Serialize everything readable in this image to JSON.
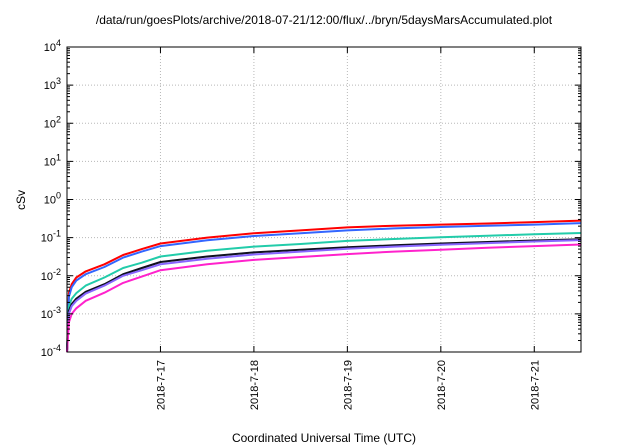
{
  "chart_data": {
    "type": "line",
    "title": "/data/run/goesPlots/archive/2018-07-21/12:00/flux/../bryn/5daysMarsAccumulated.plot",
    "xlabel": "Coordinated Universal Time (UTC)",
    "ylabel": "cSv",
    "y_scale": "log",
    "ylim": [
      0.0001,
      10000
    ],
    "xlim": [
      0,
      5.5
    ],
    "x_units": "days since 2018-7-16 00:00 UTC",
    "grid": true,
    "legend": "none",
    "x_ticks": [
      {
        "x": 1,
        "label": "2018-7-17"
      },
      {
        "x": 2,
        "label": "2018-7-18"
      },
      {
        "x": 3,
        "label": "2018-7-19"
      },
      {
        "x": 4,
        "label": "2018-7-20"
      },
      {
        "x": 5,
        "label": "2018-7-21"
      }
    ],
    "y_ticks": [
      {
        "y": 0.0001,
        "base": "10",
        "exp": "-4"
      },
      {
        "y": 0.001,
        "base": "10",
        "exp": "-3"
      },
      {
        "y": 0.01,
        "base": "10",
        "exp": "-2"
      },
      {
        "y": 0.1,
        "base": "10",
        "exp": "-1"
      },
      {
        "y": 1,
        "base": "10",
        "exp": "0"
      },
      {
        "y": 10,
        "base": "10",
        "exp": "1"
      },
      {
        "y": 100,
        "base": "10",
        "exp": "2"
      },
      {
        "y": 1000,
        "base": "10",
        "exp": "3"
      },
      {
        "y": 10000,
        "base": "10",
        "exp": "4"
      }
    ],
    "x": [
      0.02,
      0.05,
      0.1,
      0.2,
      0.4,
      0.6,
      0.8,
      1.0,
      1.5,
      2.0,
      2.5,
      3.0,
      3.5,
      4.0,
      4.5,
      5.0,
      5.5
    ],
    "series": [
      {
        "color": "#ff0000",
        "values": [
          0.0035,
          0.006,
          0.009,
          0.013,
          0.02,
          0.035,
          0.05,
          0.07,
          0.1,
          0.13,
          0.155,
          0.185,
          0.205,
          0.22,
          0.235,
          0.255,
          0.28
        ]
      },
      {
        "color": "#3366ff",
        "values": [
          0.0028,
          0.005,
          0.0075,
          0.011,
          0.017,
          0.03,
          0.043,
          0.06,
          0.085,
          0.11,
          0.13,
          0.155,
          0.175,
          0.19,
          0.205,
          0.22,
          0.24
        ]
      },
      {
        "color": "#22ccaa",
        "values": [
          0.0016,
          0.0025,
          0.0035,
          0.0055,
          0.009,
          0.016,
          0.022,
          0.032,
          0.045,
          0.058,
          0.068,
          0.082,
          0.092,
          0.102,
          0.112,
          0.122,
          0.132
        ]
      },
      {
        "color": "#101020",
        "values": [
          0.0012,
          0.0018,
          0.0025,
          0.0038,
          0.006,
          0.011,
          0.016,
          0.023,
          0.032,
          0.041,
          0.048,
          0.056,
          0.063,
          0.07,
          0.077,
          0.084,
          0.091
        ]
      },
      {
        "color": "#8866ff",
        "values": [
          0.001,
          0.0016,
          0.0022,
          0.0034,
          0.0055,
          0.01,
          0.014,
          0.02,
          0.028,
          0.036,
          0.043,
          0.051,
          0.058,
          0.065,
          0.072,
          0.079,
          0.086
        ]
      },
      {
        "color": "#ff22cc",
        "values": [
          0.0006,
          0.001,
          0.0014,
          0.0022,
          0.0036,
          0.0065,
          0.0095,
          0.014,
          0.02,
          0.026,
          0.031,
          0.037,
          0.043,
          0.048,
          0.054,
          0.06,
          0.066
        ]
      }
    ]
  }
}
